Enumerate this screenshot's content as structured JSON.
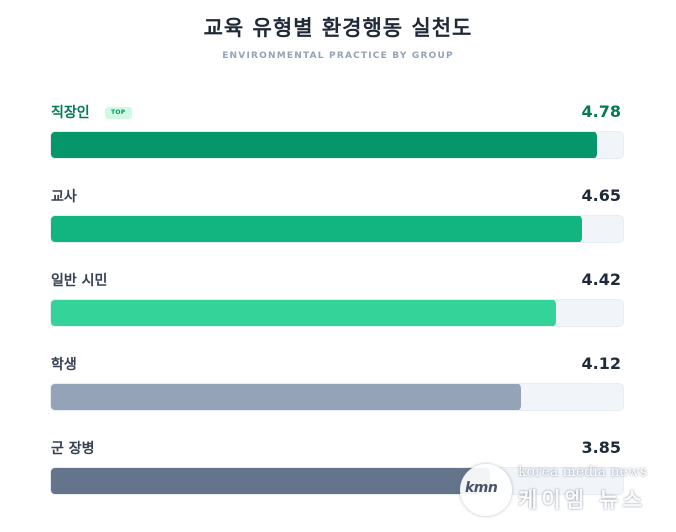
{
  "header": {
    "title": "교육 유형별 환경행동 실천도",
    "subtitle": "ENVIRONMENTAL PRACTICE BY GROUP"
  },
  "chart_data": {
    "type": "bar",
    "orientation": "horizontal",
    "title": "교육 유형별 환경행동 실천도",
    "subtitle": "ENVIRONMENTAL PRACTICE BY GROUP",
    "categories": [
      "직장인",
      "교사",
      "일반 시민",
      "학생",
      "군 장병"
    ],
    "values": [
      4.78,
      4.65,
      4.42,
      4.12,
      3.85
    ],
    "xlim": [
      0,
      5
    ],
    "grid": false,
    "legend": null,
    "annotations": [
      {
        "category": "직장인",
        "badge": "TOP"
      }
    ],
    "colors": [
      "#059669",
      "#10b981",
      "#34d399",
      "#94a3b8",
      "#64748b"
    ]
  },
  "rows": [
    {
      "label": "직장인",
      "value": "4.78",
      "percent": "95.6%",
      "color": "#05966a",
      "badge": "TOP"
    },
    {
      "label": "교사",
      "value": "4.65",
      "percent": "93%",
      "color": "#12b57f"
    },
    {
      "label": "일반 시민",
      "value": "4.42",
      "percent": "88.4%",
      "color": "#34d399"
    },
    {
      "label": "학생",
      "value": "4.12",
      "percent": "82.4%",
      "color": "#94a3b8"
    },
    {
      "label": "군 장병",
      "value": "3.85",
      "percent": "77%",
      "color": "#64748b"
    }
  ],
  "watermark": {
    "logo": "kmn",
    "english": "korea media news",
    "korean": "케이엠 뉴스"
  }
}
